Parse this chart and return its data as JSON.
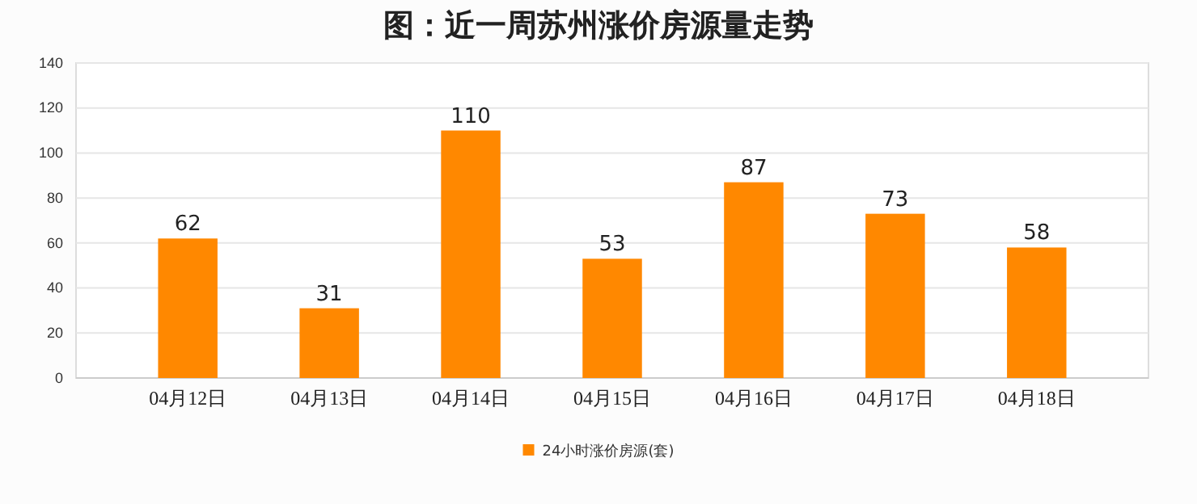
{
  "chart_data": {
    "type": "bar",
    "title": "图：近一周苏州涨价房源量走势",
    "categories": [
      "04月12日",
      "04月13日",
      "04月14日",
      "04月15日",
      "04月16日",
      "04月17日",
      "04月18日"
    ],
    "series": [
      {
        "name": "24小时涨价房源(套)",
        "color": "#ff8800",
        "values": [
          62,
          31,
          110,
          53,
          87,
          73,
          58
        ]
      }
    ],
    "ylim": [
      0,
      140
    ],
    "yticks": [
      0,
      20,
      40,
      60,
      80,
      100,
      120,
      140
    ],
    "grid": "y",
    "legend": "bottom",
    "data_labels": true
  }
}
